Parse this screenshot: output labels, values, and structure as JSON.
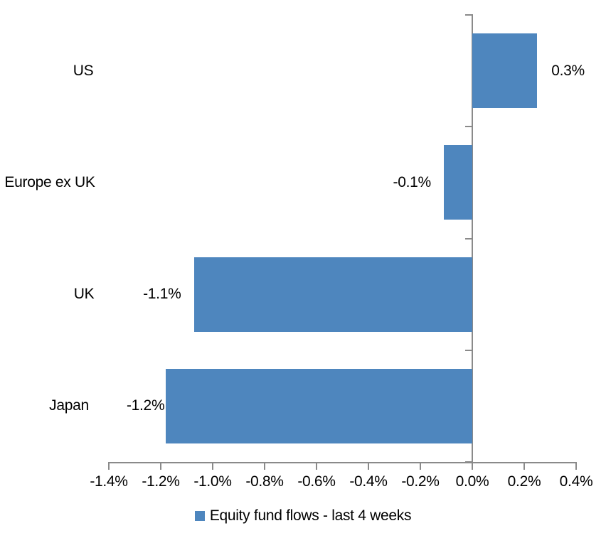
{
  "chart_data": {
    "type": "bar",
    "orientation": "horizontal",
    "title": "",
    "categories": [
      "US",
      "Europe ex UK",
      "UK",
      "Japan"
    ],
    "series": [
      {
        "name": "Equity fund flows - last 4 weeks",
        "values": [
          0.3,
          -0.1,
          -1.1,
          -1.2
        ],
        "values_precise": [
          0.25,
          -0.11,
          -1.07,
          -1.18
        ],
        "value_labels": [
          "0.3%",
          "-0.1%",
          "-1.1%",
          "-1.2%"
        ],
        "color": "#4E86BE"
      }
    ],
    "xlim": [
      -1.4,
      0.4
    ],
    "x_tick_values": [
      -1.4,
      -1.2,
      -1.0,
      -0.8,
      -0.6,
      -0.4,
      -0.2,
      0.0,
      0.2,
      0.4
    ],
    "x_tick_labels": [
      "-1.4%",
      "-1.2%",
      "-1.0%",
      "-0.8%",
      "-0.6%",
      "-0.4%",
      "-0.2%",
      "0.0%",
      "0.2%",
      "0.4%"
    ],
    "grid": false,
    "legend_position": "bottom",
    "legend": [
      {
        "label": "Equity fund flows - last 4 weeks",
        "color": "#4E86BE"
      }
    ],
    "axis_color": "#8A8A8A",
    "text_color": "#000000",
    "background": "#FFFFFF"
  }
}
